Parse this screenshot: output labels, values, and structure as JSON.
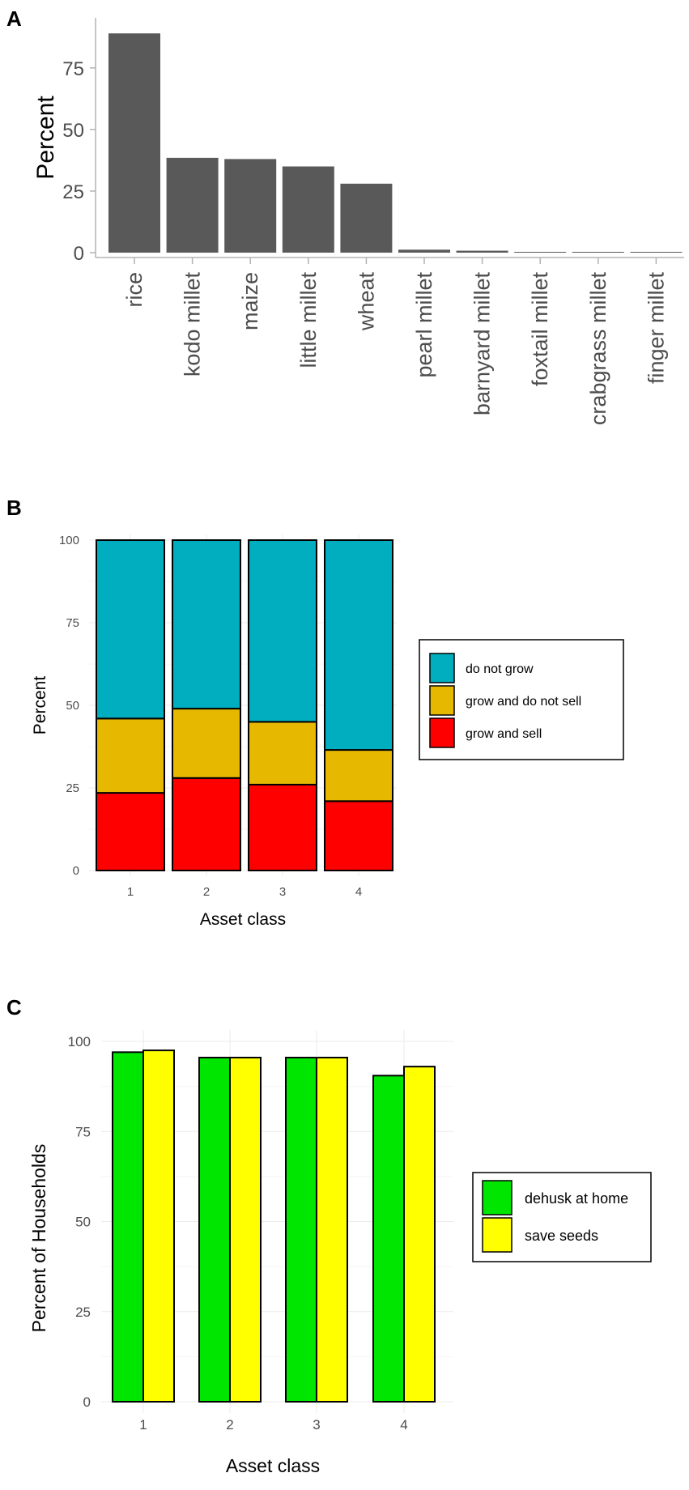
{
  "chart_data": [
    {
      "panel": "A",
      "type": "bar",
      "categories": [
        "rice",
        "kodo millet",
        "maize",
        "little millet",
        "wheat",
        "pearl millet",
        "barnyard millet",
        "foxtail millet",
        "crabgrass millet",
        "finger millet"
      ],
      "values": [
        89,
        38.5,
        38,
        35,
        28,
        1.2,
        0.8,
        0.3,
        0.3,
        0.1
      ],
      "title": "",
      "xlabel": "",
      "ylabel": "Percent",
      "ylim": [
        0,
        95
      ],
      "yticks": [
        "0",
        "25",
        "50",
        "75"
      ],
      "bar_color": "#595959"
    },
    {
      "panel": "B",
      "type": "bar",
      "stacked": true,
      "categories": [
        "1",
        "2",
        "3",
        "4"
      ],
      "series": [
        {
          "name": "grow and sell",
          "values": [
            23.5,
            28,
            26,
            21
          ],
          "color": "#ff0000"
        },
        {
          "name": "grow and do not sell",
          "values": [
            22.5,
            21,
            19,
            15.5
          ],
          "color": "#e6b800"
        },
        {
          "name": "do not grow",
          "values": [
            54,
            51,
            55,
            63.5
          ],
          "color": "#00aebf"
        }
      ],
      "legend_order": [
        "do not grow",
        "grow and do not sell",
        "grow and sell"
      ],
      "title": "",
      "xlabel": "Asset class",
      "ylabel": "Percent",
      "ylim": [
        0,
        100
      ],
      "yticks": [
        "0",
        "25",
        "50",
        "75",
        "100"
      ]
    },
    {
      "panel": "C",
      "type": "bar",
      "categories": [
        "1",
        "2",
        "3",
        "4"
      ],
      "series": [
        {
          "name": "dehusk at home",
          "values": [
            97,
            95.5,
            95.5,
            90.5
          ],
          "color": "#00e600"
        },
        {
          "name": "save seeds",
          "values": [
            97.5,
            95.5,
            95.5,
            93
          ],
          "color": "#ffff00"
        }
      ],
      "title": "",
      "xlabel": "Asset class",
      "ylabel": "Percent of Households",
      "ylim": [
        0,
        100
      ],
      "yticks": [
        "0",
        "25",
        "50",
        "75",
        "100"
      ]
    }
  ],
  "panel_labels": [
    "A",
    "B",
    "C"
  ]
}
